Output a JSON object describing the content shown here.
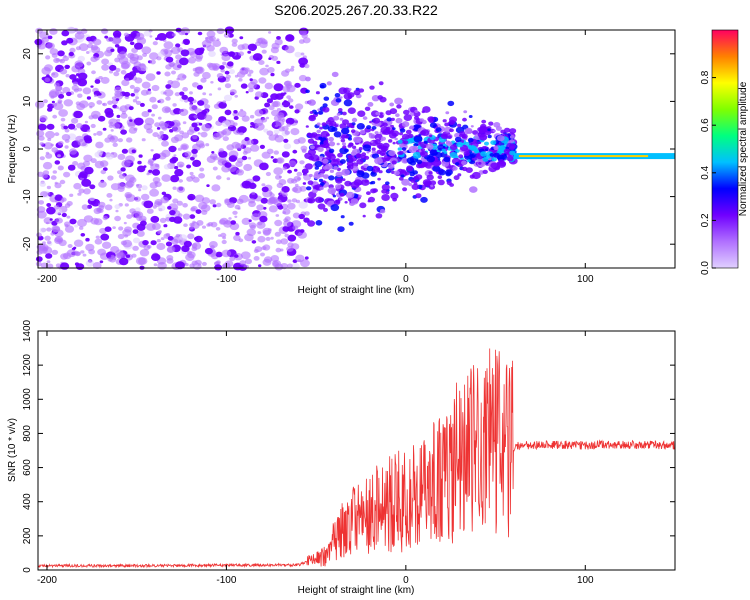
{
  "figure": {
    "title": "S206.2025.267.20.33.R22"
  },
  "chart_data": [
    {
      "type": "heatmap",
      "name": "spectrogram",
      "xlabel": "Height of straight line (km)",
      "ylabel": "Frequency (Hz)",
      "xlim": [
        -205,
        150
      ],
      "ylim": [
        -25,
        25
      ],
      "xticks": [
        -200,
        -100,
        0,
        100
      ],
      "yticks": [
        -20,
        -10,
        0,
        10,
        20
      ],
      "colorbar": {
        "label": "Normalized spectral amplitude",
        "range": [
          0,
          1
        ],
        "ticks": [
          "0.0",
          "0.2",
          "0.4",
          "0.6",
          "0.8"
        ],
        "colors": [
          "#e0d0ff",
          "#b070ff",
          "#7000ff",
          "#0000ff",
          "#00c0ff",
          "#00ff80",
          "#80ff00",
          "#ffff00",
          "#ff8000",
          "#ff0060"
        ]
      },
      "features": {
        "noise_region": [
          -205,
          -55
        ],
        "echo_region": [
          -55,
          60
        ],
        "echo_center_hz": 0,
        "carrier_region": [
          60,
          150
        ],
        "carrier_frequency_hz": -1.5
      }
    },
    {
      "type": "line",
      "name": "snr",
      "xlabel": "Height of straight line (km)",
      "ylabel": "SNR (10 * v/v)",
      "xlim": [
        -205,
        150
      ],
      "ylim": [
        0,
        1400
      ],
      "xticks": [
        -200,
        -100,
        0,
        100
      ],
      "yticks": [
        0,
        200,
        400,
        600,
        800,
        1000,
        1200,
        1400
      ],
      "line_color": "#ee3333",
      "series": [
        {
          "name": "SNR",
          "x": [
            -205,
            -150,
            -100,
            -60,
            -45,
            -38,
            -30,
            -20,
            -10,
            0,
            10,
            20,
            30,
            40,
            50,
            55,
            60,
            65,
            80,
            100,
            120,
            150
          ],
          "values": [
            25,
            25,
            28,
            30,
            80,
            200,
            280,
            330,
            390,
            410,
            460,
            540,
            650,
            720,
            760,
            760,
            720,
            730,
            735,
            730,
            735,
            730
          ]
        }
      ]
    }
  ]
}
